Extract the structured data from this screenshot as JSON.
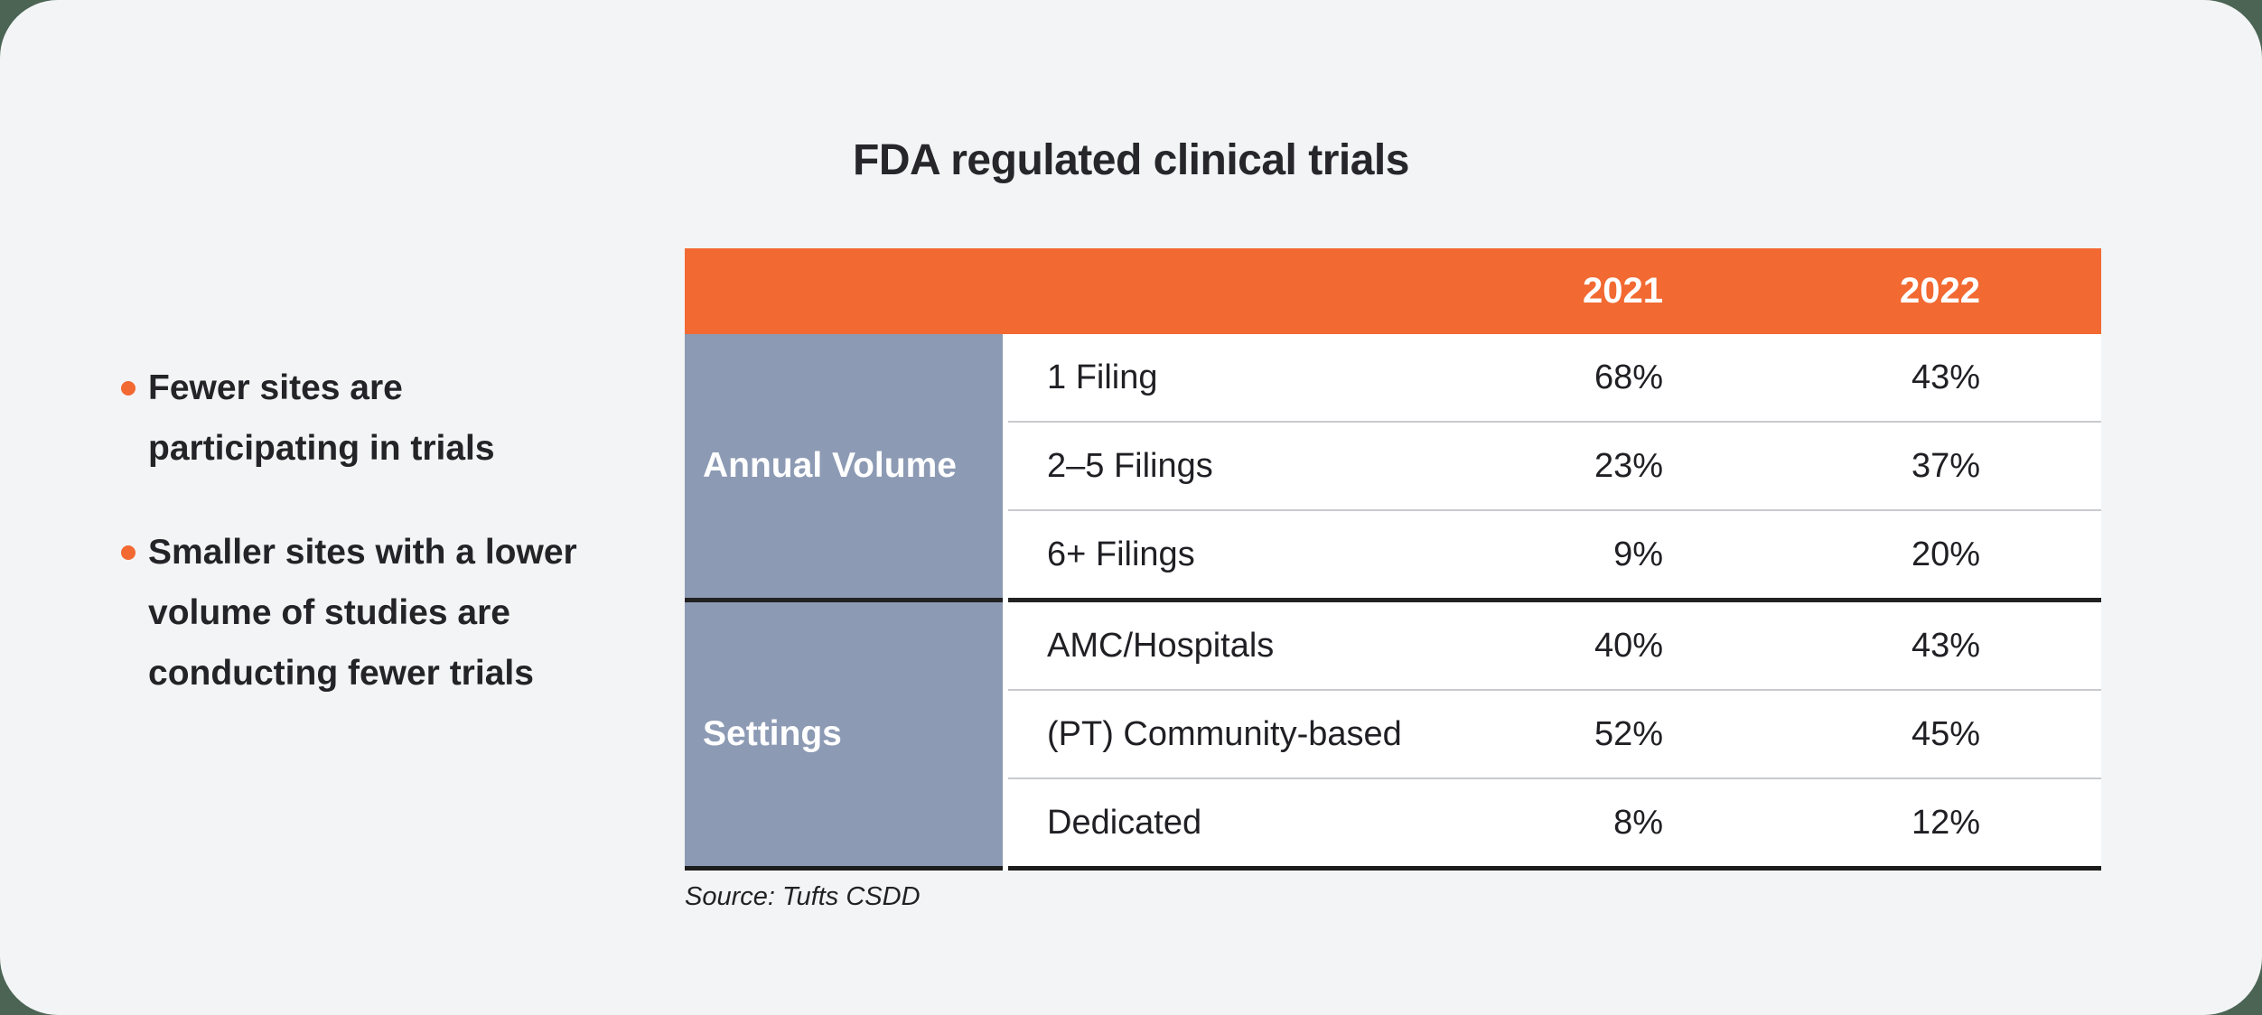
{
  "page": {
    "background_color": "#4B6454",
    "card_background_color": "#F3F4F6"
  },
  "title": "FDA regulated clinical trials",
  "bullets": [
    "Fewer sites are\nparticipating in trials",
    "Smaller sites with a lower\nvolume of studies are\nconducting fewer trials"
  ],
  "colors": {
    "accent_orange": "#F26932",
    "group_cell_blue_gray": "#8C9AB4",
    "table_body": "#FFFFFF",
    "heavy_rule": "#1C1C1C",
    "light_rule": "#C8CACD",
    "bullet_dot": "#F26932"
  },
  "table": {
    "header": {
      "col_2021": "2021",
      "col_2022": "2022"
    },
    "groups": [
      {
        "label": "Annual Volume",
        "rows": [
          {
            "item": "1 Filing",
            "y2021": "68%",
            "y2022": "43%"
          },
          {
            "item": "2–5 Filings",
            "y2021": "23%",
            "y2022": "37%"
          },
          {
            "item": "6+ Filings",
            "y2021": "9%",
            "y2022": "20%"
          }
        ]
      },
      {
        "label": "Settings",
        "rows": [
          {
            "item": "AMC/Hospitals",
            "y2021": "40%",
            "y2022": "43%"
          },
          {
            "item": "(PT) Community-based",
            "y2021": "52%",
            "y2022": "45%"
          },
          {
            "item": "Dedicated",
            "y2021": "8%",
            "y2022": "12%"
          }
        ]
      }
    ],
    "source": "Source: Tufts CSDD"
  },
  "chart_data": {
    "type": "table",
    "title": "FDA regulated clinical trials",
    "columns": [
      "2021",
      "2022"
    ],
    "units": "percent",
    "row_groups": [
      {
        "group": "Annual Volume",
        "rows": [
          {
            "label": "1 Filing",
            "values": [
              68,
              43
            ]
          },
          {
            "label": "2–5 Filings",
            "values": [
              23,
              37
            ]
          },
          {
            "label": "6+ Filings",
            "values": [
              9,
              20
            ]
          }
        ]
      },
      {
        "group": "Settings",
        "rows": [
          {
            "label": "AMC/Hospitals",
            "values": [
              40,
              43
            ]
          },
          {
            "label": "(PT) Community-based",
            "values": [
              52,
              45
            ]
          },
          {
            "label": "Dedicated",
            "values": [
              8,
              12
            ]
          }
        ]
      }
    ],
    "annotations": [
      "Fewer sites are participating in trials",
      "Smaller sites with a lower volume of studies are conducting fewer trials"
    ],
    "source": "Source: Tufts CSDD"
  }
}
